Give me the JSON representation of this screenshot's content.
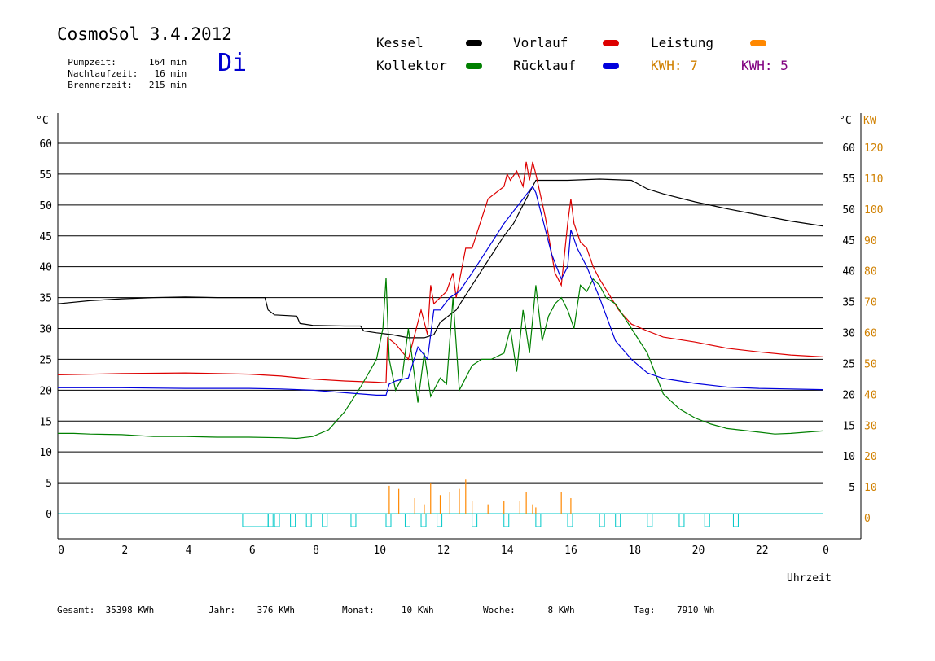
{
  "header": {
    "title": "CosmoSol 3.4.2012",
    "day_label": "Di",
    "stats": [
      {
        "label": "Pumpzeit:",
        "value": "164 min"
      },
      {
        "label": "Nachlaufzeit:",
        "value": "16 min"
      },
      {
        "label": "Brennerzeit:",
        "value": "215 min"
      }
    ]
  },
  "legend": {
    "items": [
      {
        "label": "Kessel",
        "color": "#000000"
      },
      {
        "label": "Vorlauf",
        "color": "#dd0000"
      },
      {
        "label": "Leistung",
        "color": "#ff8800"
      },
      {
        "label": "Kollektor",
        "color": "#008000"
      },
      {
        "label": "Rücklauf",
        "color": "#0000dd"
      }
    ],
    "kwh_orange": "KWH: 7",
    "kwh_purple": "KWH: 5",
    "kwh_orange_color": "#d08000",
    "kwh_purple_color": "#800080"
  },
  "footer": [
    {
      "label": "Gesamt:",
      "value": "35398 KWh"
    },
    {
      "label": "Jahr:",
      "value": "376 KWh"
    },
    {
      "label": "Monat:",
      "value": "10 KWh"
    },
    {
      "label": "Woche:",
      "value": "8 KWh"
    },
    {
      "label": "Tag:",
      "value": "7910 Wh"
    }
  ],
  "chart_data": {
    "type": "line",
    "xlabel": "Uhrzeit",
    "x_ticks": [
      "0",
      "2",
      "4",
      "6",
      "8",
      "10",
      "12",
      "14",
      "16",
      "18",
      "20",
      "22",
      "0"
    ],
    "x_range": [
      0,
      24
    ],
    "y_left": {
      "unit": "°C",
      "range": [
        0,
        60
      ],
      "ticks": [
        0,
        5,
        10,
        15,
        20,
        25,
        30,
        35,
        40,
        45,
        50,
        55,
        60
      ]
    },
    "y_right": {
      "unit": "°C",
      "unit2": "KW",
      "temp_ticks": [
        5,
        10,
        15,
        20,
        25,
        30,
        35,
        40,
        45,
        50,
        55,
        60
      ],
      "kw_ticks": [
        0,
        10,
        20,
        30,
        40,
        50,
        60,
        70,
        80,
        90,
        100,
        110,
        120
      ]
    },
    "grid": true,
    "series": [
      {
        "name": "Kessel",
        "color": "#000000",
        "x": [
          0,
          1,
          2,
          3,
          4,
          5,
          6,
          6.5,
          6.6,
          6.8,
          7.5,
          7.6,
          8,
          9,
          9.5,
          9.6,
          10,
          10.5,
          11,
          11.5,
          11.8,
          12,
          12.5,
          13,
          13.5,
          14,
          14.3,
          14.6,
          14.9,
          15,
          16,
          17,
          18,
          18.5,
          19,
          20,
          21,
          22,
          23,
          24
        ],
        "y": [
          34,
          34.5,
          34.8,
          35,
          35.1,
          35,
          35,
          35,
          33,
          32.2,
          32,
          30.8,
          30.5,
          30.4,
          30.4,
          29.6,
          29.3,
          29,
          28.5,
          28.5,
          29,
          31,
          33,
          37,
          41,
          45,
          47,
          50,
          53,
          54,
          54,
          54.2,
          54,
          52.6,
          51.8,
          50.5,
          49.4,
          48.4,
          47.4,
          46.6
        ]
      },
      {
        "name": "Vorlauf",
        "color": "#dd0000",
        "x": [
          0,
          2,
          4,
          6,
          7,
          8,
          9,
          10,
          10.3,
          10.35,
          10.6,
          11,
          11.4,
          11.6,
          11.7,
          11.8,
          12,
          12.2,
          12.4,
          12.5,
          12.8,
          13,
          13.5,
          14,
          14.1,
          14.2,
          14.4,
          14.6,
          14.7,
          14.8,
          14.9,
          15,
          15.3,
          15.6,
          15.8,
          16,
          16.1,
          16.2,
          16.4,
          16.6,
          16.8,
          17,
          17.3,
          17.6,
          18,
          18.5,
          19,
          20,
          21,
          22,
          23,
          24
        ],
        "y": [
          22.5,
          22.7,
          22.8,
          22.6,
          22.3,
          21.8,
          21.5,
          21.3,
          21.2,
          28.5,
          27.5,
          25,
          33,
          29,
          37,
          34,
          35,
          36,
          39,
          35,
          43,
          43,
          51,
          53,
          55,
          54,
          55.5,
          53,
          57,
          54,
          57,
          55,
          48,
          39,
          37,
          47,
          51,
          47,
          44,
          43,
          40,
          38,
          35.5,
          33,
          30.7,
          29.6,
          28.6,
          27.8,
          26.8,
          26.2,
          25.7,
          25.4
        ]
      },
      {
        "name": "Kollektor",
        "color": "#008000",
        "x": [
          0,
          0.5,
          1,
          2,
          3,
          4,
          5,
          6,
          7,
          7.5,
          8,
          8.5,
          9,
          9.5,
          10,
          10.2,
          10.3,
          10.4,
          10.6,
          10.8,
          11,
          11.3,
          11.5,
          11.7,
          12,
          12.2,
          12.4,
          12.6,
          12.8,
          13,
          13.3,
          13.6,
          14,
          14.2,
          14.4,
          14.6,
          14.8,
          15,
          15.2,
          15.4,
          15.6,
          15.8,
          16,
          16.2,
          16.4,
          16.6,
          16.8,
          17,
          17.2,
          17.5,
          18,
          18.5,
          19,
          19.5,
          20,
          20.5,
          21,
          22,
          22.5,
          23,
          24
        ],
        "y": [
          13,
          13,
          12.9,
          12.8,
          12.5,
          12.5,
          12.4,
          12.4,
          12.3,
          12.2,
          12.5,
          13.6,
          16.5,
          20.5,
          25,
          30,
          38.2,
          25,
          20,
          22,
          30,
          18,
          26,
          19,
          22,
          21,
          35,
          20,
          22,
          24,
          25,
          25,
          26,
          30,
          23,
          33,
          26,
          37,
          28,
          32,
          34,
          35,
          33,
          30,
          37,
          36,
          38,
          37,
          35,
          34,
          30,
          26,
          19.4,
          17,
          15.5,
          14.5,
          13.8,
          13.2,
          12.9,
          13,
          13.4
        ]
      },
      {
        "name": "Rücklauf",
        "color": "#0000dd",
        "x": [
          0,
          2,
          4,
          6,
          7,
          8,
          9,
          10,
          10.3,
          10.4,
          10.6,
          11,
          11.3,
          11.6,
          11.8,
          12,
          12.3,
          12.6,
          13,
          13.5,
          14,
          14.3,
          14.6,
          14.9,
          15,
          15.2,
          15.5,
          15.8,
          16,
          16.1,
          16.3,
          16.6,
          17,
          17.5,
          18,
          18.5,
          19,
          20,
          21,
          22,
          23,
          24
        ],
        "y": [
          20.4,
          20.4,
          20.3,
          20.3,
          20.2,
          20,
          19.6,
          19.2,
          19.2,
          21,
          21.5,
          22,
          27,
          25,
          33,
          33,
          35,
          36,
          39,
          43,
          47,
          49,
          51,
          53,
          52,
          48,
          42,
          38,
          40,
          46,
          43,
          40,
          35,
          28,
          25,
          22.8,
          21.9,
          21.1,
          20.5,
          20.3,
          20.2,
          20.1
        ]
      }
    ],
    "power_kw": {
      "x": [
        10.3,
        10.4,
        10.7,
        11.2,
        11.5,
        11.7,
        12,
        12.3,
        12.6,
        12.8,
        13,
        13.5,
        14,
        14.5,
        14.7,
        14.9,
        15,
        15.8,
        16.1
      ],
      "y": [
        0,
        9,
        8,
        5,
        3,
        10,
        6,
        7,
        8,
        11,
        4,
        3,
        4,
        4,
        7,
        3,
        2,
        7,
        5
      ]
    },
    "pump_states_x": [
      5.8,
      6.6,
      6.8,
      7.3,
      7.8,
      8.3,
      9.2,
      10.3,
      10.9,
      11.4,
      11.9,
      13,
      14,
      15,
      16,
      17,
      17.5,
      18.5,
      19.5,
      20.3,
      21.2
    ],
    "annotations": []
  }
}
